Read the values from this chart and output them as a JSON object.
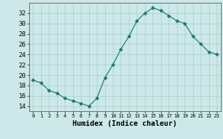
{
  "x": [
    0,
    1,
    2,
    3,
    4,
    5,
    6,
    7,
    8,
    9,
    10,
    11,
    12,
    13,
    14,
    15,
    16,
    17,
    18,
    19,
    20,
    21,
    22,
    23
  ],
  "y": [
    19.0,
    18.5,
    17.0,
    16.5,
    15.5,
    15.0,
    14.5,
    14.0,
    15.5,
    19.5,
    22.0,
    25.0,
    27.5,
    30.5,
    32.0,
    33.0,
    32.5,
    31.5,
    30.5,
    30.0,
    27.5,
    26.0,
    24.5,
    24.0
  ],
  "line_color": "#1a7a6e",
  "marker": "D",
  "marker_size": 2.5,
  "bg_color": "#cce8e8",
  "grid_color": "#aacfcf",
  "xlabel": "Humidex (Indice chaleur)",
  "xlim": [
    -0.5,
    23.5
  ],
  "ylim": [
    13,
    34
  ],
  "yticks": [
    14,
    16,
    18,
    20,
    22,
    24,
    26,
    28,
    30,
    32
  ],
  "xticks": [
    0,
    1,
    2,
    3,
    4,
    5,
    6,
    7,
    8,
    9,
    10,
    11,
    12,
    13,
    14,
    15,
    16,
    17,
    18,
    19,
    20,
    21,
    22,
    23
  ],
  "xlabel_fontsize": 7.5,
  "tick_fontsize": 6.5
}
